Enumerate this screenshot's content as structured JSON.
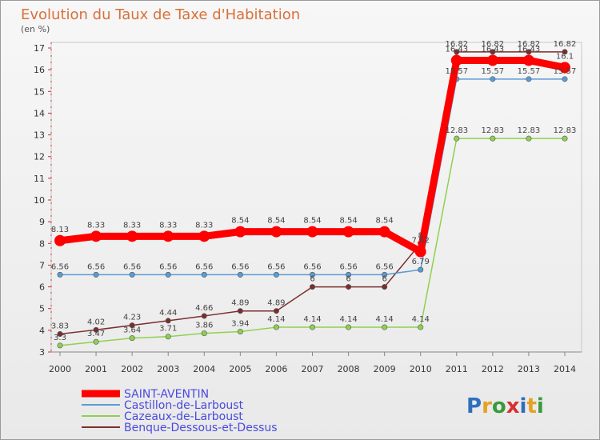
{
  "chart_data": {
    "type": "line",
    "title": "Evolution du Taux de Taxe d'Habitation",
    "unit_label": "(en %)",
    "x": [
      "2000",
      "2001",
      "2002",
      "2003",
      "2004",
      "2005",
      "2006",
      "2007",
      "2008",
      "2009",
      "2010",
      "2011",
      "2012",
      "2013",
      "2014"
    ],
    "ylim": [
      3,
      17
    ],
    "yticks": [
      "3",
      "4",
      "5",
      "6",
      "7",
      "8",
      "9",
      "10",
      "11",
      "12",
      "13",
      "14",
      "15",
      "16",
      "17"
    ],
    "grid": false,
    "legend_position": "bottom-left",
    "series": [
      {
        "name": "SAINT-AVENTIN",
        "color": "#ff0000",
        "values": [
          8.13,
          8.33,
          8.33,
          8.33,
          8.33,
          8.54,
          8.54,
          8.54,
          8.54,
          8.54,
          7.62,
          16.43,
          16.43,
          16.43,
          16.1
        ],
        "labels": [
          "8.13",
          "8.33",
          "8.33",
          "8.33",
          "8.33",
          "8.54",
          "8.54",
          "8.54",
          "8.54",
          "8.54",
          "7.62",
          "16.43",
          "16.43",
          "16.43",
          "16.1"
        ]
      },
      {
        "name": "Castillon-de-Larboust",
        "color": "#5b9bd5",
        "values": [
          6.56,
          6.56,
          6.56,
          6.56,
          6.56,
          6.56,
          6.56,
          6.56,
          6.56,
          6.56,
          6.79,
          15.57,
          15.57,
          15.57,
          15.57
        ],
        "labels": [
          "6.56",
          "6.56",
          "6.56",
          "6.56",
          "6.56",
          "6.56",
          "6.56",
          "6.56",
          "6.56",
          "6.56",
          "6.79",
          "15.57",
          "15.57",
          "15.57",
          "15.57"
        ]
      },
      {
        "name": "Cazeaux-de-Larboust",
        "color": "#8fd14f",
        "values": [
          3.3,
          3.47,
          3.64,
          3.71,
          3.86,
          3.94,
          4.14,
          4.14,
          4.14,
          4.14,
          4.14,
          12.83,
          12.83,
          12.83,
          12.83
        ],
        "labels": [
          "3.3",
          "3.47",
          "3.64",
          "3.71",
          "3.86",
          "3.94",
          "4.14",
          "4.14",
          "4.14",
          "4.14",
          "4.14",
          "12.83",
          "12.83",
          "12.83",
          "12.83"
        ]
      },
      {
        "name": "Benque-Dessous-et-Dessus",
        "color": "#7a2e2e",
        "values": [
          3.83,
          4.02,
          4.23,
          4.44,
          4.66,
          4.89,
          4.89,
          6.0,
          6.0,
          6.0,
          8.0,
          16.82,
          16.82,
          16.82,
          16.82
        ],
        "labels": [
          "3.83",
          "4.02",
          "4.23",
          "4.44",
          "4.66",
          "4.89",
          "4.89",
          "6",
          "6",
          "6",
          "8",
          "16.82",
          "16.82",
          "16.82",
          "16.82"
        ]
      }
    ]
  },
  "logo": {
    "text": "Proxiti",
    "colors": [
      "#2e6fbf",
      "#e8a020",
      "#3a9a3a",
      "#d83030",
      "#2e6fbf",
      "#e8a020",
      "#3a9a3a"
    ]
  }
}
